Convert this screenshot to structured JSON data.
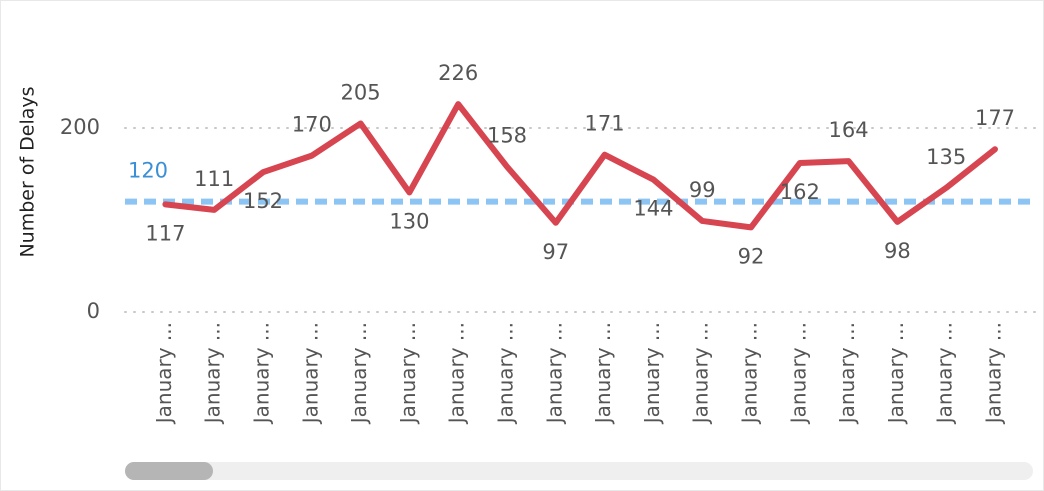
{
  "chart_data": {
    "type": "line",
    "y_label": "Number of Delays",
    "categories": [
      "January ...",
      "January ...",
      "January ...",
      "January ...",
      "January ...",
      "January ...",
      "January ...",
      "January ...",
      "January ...",
      "January ...",
      "January ...",
      "January ...",
      "January ...",
      "January ...",
      "January ...",
      "January ...",
      "January ...",
      "January ..."
    ],
    "series": [
      {
        "name": "Number of Delays",
        "color": "#d64550",
        "values": [
          117,
          111,
          152,
          170,
          205,
          130,
          226,
          158,
          97,
          171,
          144,
          99,
          92,
          162,
          164,
          98,
          135,
          177
        ]
      }
    ],
    "reference_line": {
      "value": 120,
      "color": "#8cc4f4"
    },
    "ylim": [
      0,
      274
    ],
    "yticks": [
      0,
      200
    ],
    "grid": true
  }
}
